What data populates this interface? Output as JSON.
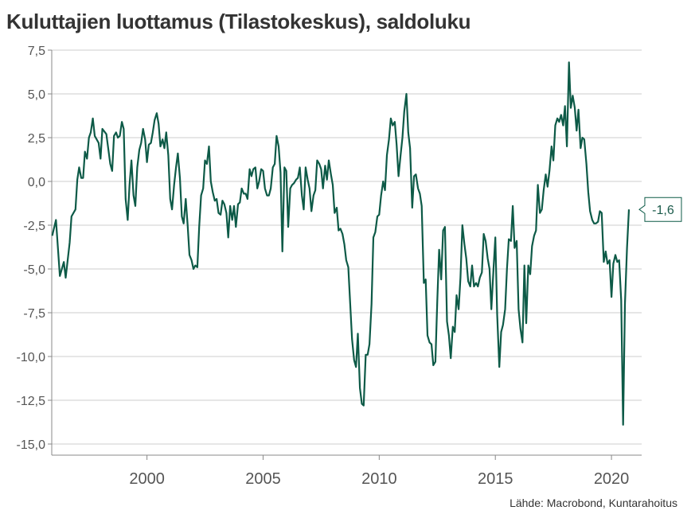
{
  "title": "Kuluttajien luottamus (Tilastokeskus), saldoluku",
  "source": "Lähde: Macrobond, Kuntarahoitus",
  "colors": {
    "line": "#0d5a47",
    "grid": "#cccccc",
    "axis": "#888888",
    "text": "#555555"
  },
  "chart_data": {
    "type": "line",
    "title": "Kuluttajien luottamus (Tilastokeskus), saldoluku",
    "xlabel": "",
    "ylabel": "",
    "ylim": [
      -15,
      7.5
    ],
    "xlim": [
      1995.9,
      2021.3
    ],
    "y_ticks": [
      7.5,
      5.0,
      2.5,
      0.0,
      -2.5,
      -5.0,
      -7.5,
      -10.0,
      -12.5,
      -15.0
    ],
    "y_tick_labels": [
      "7,5",
      "5,0",
      "2,5",
      "0,0",
      "-2,5",
      "-5,0",
      "-7,5",
      "-10,0",
      "-12,5",
      "-15,0"
    ],
    "x_ticks": [
      2000,
      2005,
      2010,
      2015,
      2020
    ],
    "x_tick_labels": [
      "2000",
      "2005",
      "2010",
      "2015",
      "2020"
    ],
    "grid": "horizontal",
    "last_value_label": "-1,6",
    "series": [
      {
        "color": "#0d5a47",
        "points": [
          [
            1995.92,
            -3.1
          ],
          [
            1996.08,
            -2.2
          ],
          [
            1996.25,
            -5.4
          ],
          [
            1996.42,
            -4.6
          ],
          [
            1996.5,
            -5.5
          ],
          [
            1996.67,
            -3.5
          ],
          [
            1996.75,
            -2.0
          ],
          [
            1996.92,
            -1.6
          ],
          [
            1997.0,
            0.1
          ],
          [
            1997.08,
            0.8
          ],
          [
            1997.17,
            0.2
          ],
          [
            1997.25,
            0.2
          ],
          [
            1997.33,
            1.7
          ],
          [
            1997.42,
            1.3
          ],
          [
            1997.5,
            2.5
          ],
          [
            1997.58,
            2.8
          ],
          [
            1997.67,
            3.6
          ],
          [
            1997.75,
            2.6
          ],
          [
            1997.92,
            2.2
          ],
          [
            1998.0,
            1.3
          ],
          [
            1998.08,
            3.0
          ],
          [
            1998.25,
            2.7
          ],
          [
            1998.42,
            1.0
          ],
          [
            1998.5,
            0.6
          ],
          [
            1998.58,
            2.6
          ],
          [
            1998.67,
            2.8
          ],
          [
            1998.75,
            2.5
          ],
          [
            1998.83,
            2.6
          ],
          [
            1998.92,
            3.4
          ],
          [
            1999.0,
            3.0
          ],
          [
            1999.08,
            -1.0
          ],
          [
            1999.17,
            -2.2
          ],
          [
            1999.25,
            -0.2
          ],
          [
            1999.33,
            1.2
          ],
          [
            1999.42,
            -0.8
          ],
          [
            1999.5,
            -1.4
          ],
          [
            1999.58,
            0.8
          ],
          [
            1999.67,
            1.8
          ],
          [
            1999.75,
            2.2
          ],
          [
            1999.83,
            3.0
          ],
          [
            1999.92,
            2.4
          ],
          [
            2000.0,
            1.1
          ],
          [
            2000.08,
            2.1
          ],
          [
            2000.17,
            2.2
          ],
          [
            2000.25,
            2.8
          ],
          [
            2000.33,
            3.5
          ],
          [
            2000.42,
            3.9
          ],
          [
            2000.5,
            3.3
          ],
          [
            2000.58,
            2.0
          ],
          [
            2000.67,
            2.4
          ],
          [
            2000.75,
            1.9
          ],
          [
            2000.83,
            2.8
          ],
          [
            2000.92,
            1.5
          ],
          [
            2001.0,
            -1.0
          ],
          [
            2001.08,
            -1.6
          ],
          [
            2001.17,
            -0.2
          ],
          [
            2001.25,
            0.8
          ],
          [
            2001.33,
            1.6
          ],
          [
            2001.42,
            0.2
          ],
          [
            2001.5,
            -2.0
          ],
          [
            2001.58,
            -2.4
          ],
          [
            2001.67,
            -1.0
          ],
          [
            2001.75,
            -2.5
          ],
          [
            2001.83,
            -4.2
          ],
          [
            2001.92,
            -4.5
          ],
          [
            2002.0,
            -5.0
          ],
          [
            2002.08,
            -4.8
          ],
          [
            2002.17,
            -4.9
          ],
          [
            2002.25,
            -2.6
          ],
          [
            2002.33,
            -0.8
          ],
          [
            2002.42,
            -0.4
          ],
          [
            2002.5,
            1.2
          ],
          [
            2002.58,
            1.0
          ],
          [
            2002.67,
            2.0
          ],
          [
            2002.75,
            0.0
          ],
          [
            2002.83,
            -0.6
          ],
          [
            2002.92,
            -1.1
          ],
          [
            2003.0,
            -1.0
          ],
          [
            2003.08,
            -1.8
          ],
          [
            2003.17,
            -1.9
          ],
          [
            2003.25,
            -1.1
          ],
          [
            2003.33,
            -1.3
          ],
          [
            2003.42,
            -1.8
          ],
          [
            2003.5,
            -3.2
          ],
          [
            2003.58,
            -1.4
          ],
          [
            2003.67,
            -2.2
          ],
          [
            2003.75,
            -1.4
          ],
          [
            2003.83,
            -2.6
          ],
          [
            2003.92,
            -1.3
          ],
          [
            2004.0,
            -1.2
          ],
          [
            2004.08,
            -0.4
          ],
          [
            2004.17,
            -0.7
          ],
          [
            2004.25,
            -0.7
          ],
          [
            2004.33,
            -1.0
          ],
          [
            2004.42,
            0.7
          ],
          [
            2004.5,
            0.3
          ],
          [
            2004.58,
            0.7
          ],
          [
            2004.67,
            0.8
          ],
          [
            2004.75,
            -0.4
          ],
          [
            2004.83,
            0.0
          ],
          [
            2004.92,
            0.7
          ],
          [
            2005.0,
            0.6
          ],
          [
            2005.08,
            -0.4
          ],
          [
            2005.17,
            -0.8
          ],
          [
            2005.25,
            -0.8
          ],
          [
            2005.33,
            -0.4
          ],
          [
            2005.42,
            0.8
          ],
          [
            2005.5,
            1.0
          ],
          [
            2005.58,
            2.6
          ],
          [
            2005.67,
            2.0
          ],
          [
            2005.75,
            0.5
          ],
          [
            2005.83,
            -4.0
          ],
          [
            2005.92,
            0.8
          ],
          [
            2006.0,
            0.6
          ],
          [
            2006.08,
            -2.6
          ],
          [
            2006.17,
            -0.4
          ],
          [
            2006.25,
            -0.2
          ],
          [
            2006.33,
            -0.1
          ],
          [
            2006.42,
            0.1
          ],
          [
            2006.5,
            0.2
          ],
          [
            2006.58,
            0.8
          ],
          [
            2006.67,
            -0.8
          ],
          [
            2006.75,
            -1.6
          ],
          [
            2006.83,
            0.8
          ],
          [
            2006.92,
            0.1
          ],
          [
            2007.0,
            -0.4
          ],
          [
            2007.08,
            -1.7
          ],
          [
            2007.17,
            -0.8
          ],
          [
            2007.25,
            -0.5
          ],
          [
            2007.33,
            1.2
          ],
          [
            2007.42,
            1.0
          ],
          [
            2007.5,
            0.7
          ],
          [
            2007.58,
            -0.4
          ],
          [
            2007.67,
            0.9
          ],
          [
            2007.75,
            0.1
          ],
          [
            2007.83,
            1.2
          ],
          [
            2007.92,
            0.4
          ],
          [
            2008.0,
            -0.2
          ],
          [
            2008.08,
            -1.8
          ],
          [
            2008.17,
            -1.5
          ],
          [
            2008.25,
            -2.8
          ],
          [
            2008.33,
            -2.7
          ],
          [
            2008.42,
            -3.0
          ],
          [
            2008.5,
            -3.6
          ],
          [
            2008.58,
            -4.5
          ],
          [
            2008.67,
            -4.9
          ],
          [
            2008.75,
            -7.0
          ],
          [
            2008.83,
            -9.0
          ],
          [
            2008.92,
            -10.2
          ],
          [
            2009.0,
            -10.6
          ],
          [
            2009.08,
            -8.7
          ],
          [
            2009.17,
            -11.8
          ],
          [
            2009.25,
            -12.7
          ],
          [
            2009.33,
            -12.8
          ],
          [
            2009.42,
            -9.9
          ],
          [
            2009.5,
            -9.9
          ],
          [
            2009.58,
            -9.3
          ],
          [
            2009.67,
            -7.0
          ],
          [
            2009.75,
            -3.2
          ],
          [
            2009.83,
            -2.9
          ],
          [
            2009.92,
            -2.0
          ],
          [
            2010.0,
            -1.9
          ],
          [
            2010.08,
            -0.8
          ],
          [
            2010.17,
            0.0
          ],
          [
            2010.25,
            -0.5
          ],
          [
            2010.33,
            1.5
          ],
          [
            2010.42,
            2.4
          ],
          [
            2010.5,
            3.6
          ],
          [
            2010.58,
            3.2
          ],
          [
            2010.67,
            3.4
          ],
          [
            2010.75,
            2.1
          ],
          [
            2010.83,
            0.3
          ],
          [
            2010.92,
            1.5
          ],
          [
            2011.0,
            2.5
          ],
          [
            2011.08,
            4.0
          ],
          [
            2011.17,
            5.0
          ],
          [
            2011.25,
            2.8
          ],
          [
            2011.33,
            1.9
          ],
          [
            2011.42,
            -1.5
          ],
          [
            2011.5,
            0.3
          ],
          [
            2011.58,
            0.4
          ],
          [
            2011.67,
            -0.4
          ],
          [
            2011.75,
            -0.7
          ],
          [
            2011.83,
            -1.4
          ],
          [
            2011.92,
            -5.8
          ],
          [
            2012.0,
            -5.6
          ],
          [
            2012.08,
            -8.8
          ],
          [
            2012.17,
            -9.2
          ],
          [
            2012.25,
            -9.3
          ],
          [
            2012.33,
            -10.5
          ],
          [
            2012.42,
            -10.3
          ],
          [
            2012.5,
            -6.8
          ],
          [
            2012.58,
            -3.9
          ],
          [
            2012.67,
            -5.6
          ],
          [
            2012.75,
            -2.8
          ],
          [
            2012.83,
            -2.6
          ],
          [
            2012.92,
            -8.0
          ],
          [
            2013.0,
            -8.8
          ],
          [
            2013.08,
            -10.1
          ],
          [
            2013.17,
            -8.3
          ],
          [
            2013.25,
            -8.6
          ],
          [
            2013.33,
            -6.5
          ],
          [
            2013.42,
            -7.3
          ],
          [
            2013.5,
            -5.5
          ],
          [
            2013.58,
            -2.5
          ],
          [
            2013.67,
            -3.6
          ],
          [
            2013.75,
            -4.4
          ],
          [
            2013.83,
            -5.7
          ],
          [
            2013.92,
            -6.0
          ],
          [
            2014.0,
            -4.8
          ],
          [
            2014.08,
            -6.0
          ],
          [
            2014.17,
            -5.8
          ],
          [
            2014.25,
            -6.0
          ],
          [
            2014.33,
            -5.5
          ],
          [
            2014.42,
            -5.2
          ],
          [
            2014.5,
            -3.0
          ],
          [
            2014.58,
            -3.4
          ],
          [
            2014.67,
            -4.4
          ],
          [
            2014.75,
            -5.0
          ],
          [
            2014.83,
            -7.3
          ],
          [
            2014.92,
            -5.0
          ],
          [
            2015.0,
            -3.2
          ],
          [
            2015.08,
            -7.6
          ],
          [
            2015.17,
            -10.6
          ],
          [
            2015.25,
            -8.6
          ],
          [
            2015.33,
            -8.2
          ],
          [
            2015.42,
            -7.3
          ],
          [
            2015.5,
            -5.0
          ],
          [
            2015.58,
            -3.3
          ],
          [
            2015.67,
            -3.4
          ],
          [
            2015.75,
            -1.4
          ],
          [
            2015.83,
            -3.8
          ],
          [
            2015.92,
            -3.4
          ],
          [
            2016.0,
            -7.3
          ],
          [
            2016.08,
            -8.4
          ],
          [
            2016.17,
            -9.2
          ],
          [
            2016.25,
            -4.8
          ],
          [
            2016.33,
            -8.1
          ],
          [
            2016.42,
            -4.8
          ],
          [
            2016.5,
            -5.3
          ],
          [
            2016.58,
            -3.7
          ],
          [
            2016.67,
            -3.1
          ],
          [
            2016.75,
            -2.8
          ],
          [
            2016.83,
            -0.2
          ],
          [
            2016.92,
            -1.8
          ],
          [
            2017.0,
            -1.6
          ],
          [
            2017.08,
            -0.5
          ],
          [
            2017.17,
            0.4
          ],
          [
            2017.25,
            -0.3
          ],
          [
            2017.33,
            0.6
          ],
          [
            2017.42,
            2.0
          ],
          [
            2017.5,
            1.2
          ],
          [
            2017.58,
            3.2
          ],
          [
            2017.67,
            3.6
          ],
          [
            2017.75,
            3.4
          ],
          [
            2017.83,
            3.8
          ],
          [
            2017.92,
            3.2
          ],
          [
            2018.0,
            4.3
          ],
          [
            2018.08,
            2.0
          ],
          [
            2018.17,
            6.8
          ],
          [
            2018.25,
            4.2
          ],
          [
            2018.33,
            4.9
          ],
          [
            2018.42,
            4.2
          ],
          [
            2018.5,
            2.9
          ],
          [
            2018.58,
            4.1
          ],
          [
            2018.67,
            1.9
          ],
          [
            2018.75,
            2.5
          ],
          [
            2018.83,
            2.4
          ],
          [
            2018.92,
            1.0
          ],
          [
            2019.0,
            -0.6
          ],
          [
            2019.08,
            -1.7
          ],
          [
            2019.17,
            -2.2
          ],
          [
            2019.25,
            -2.4
          ],
          [
            2019.33,
            -2.4
          ],
          [
            2019.42,
            -2.3
          ],
          [
            2019.5,
            -1.7
          ],
          [
            2019.58,
            -1.8
          ],
          [
            2019.67,
            -4.6
          ],
          [
            2019.75,
            -4.0
          ],
          [
            2019.83,
            -4.7
          ],
          [
            2019.92,
            -4.5
          ],
          [
            2020.0,
            -6.6
          ],
          [
            2020.08,
            -4.7
          ],
          [
            2020.17,
            -4.2
          ],
          [
            2020.25,
            -4.6
          ],
          [
            2020.33,
            -4.5
          ],
          [
            2020.42,
            -6.8
          ],
          [
            2020.5,
            -13.9
          ],
          [
            2020.58,
            -7.0
          ],
          [
            2020.67,
            -3.8
          ],
          [
            2020.75,
            -1.6
          ]
        ]
      }
    ]
  }
}
